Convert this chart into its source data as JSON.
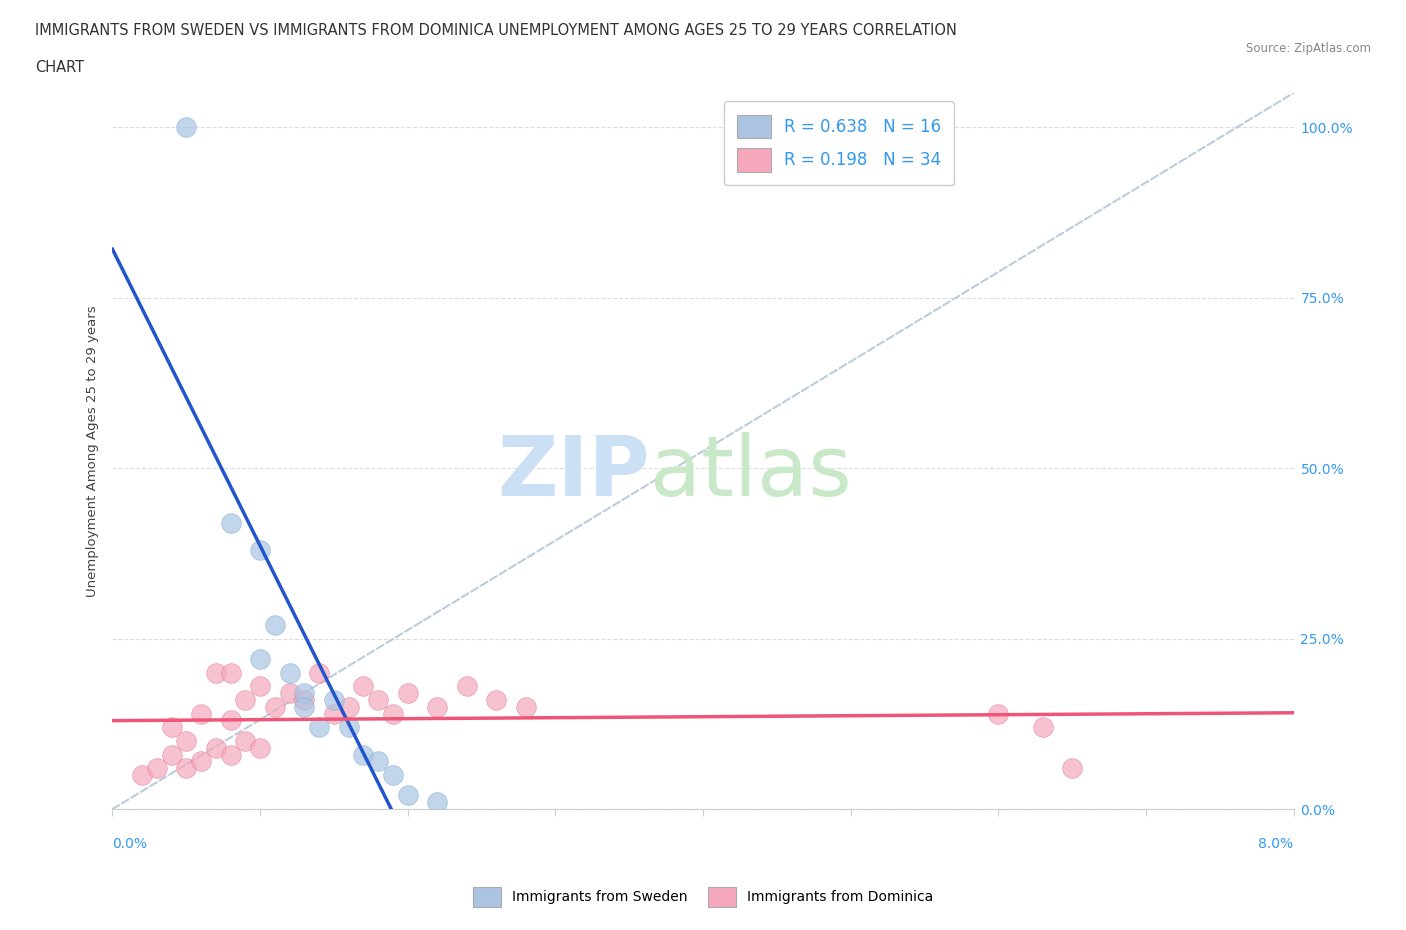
{
  "title_line1": "IMMIGRANTS FROM SWEDEN VS IMMIGRANTS FROM DOMINICA UNEMPLOYMENT AMONG AGES 25 TO 29 YEARS CORRELATION",
  "title_line2": "CHART",
  "source": "Source: ZipAtlas.com",
  "ylabel": "Unemployment Among Ages 25 to 29 years",
  "yticks": [
    0.0,
    0.25,
    0.5,
    0.75,
    1.0
  ],
  "ytick_labels": [
    "0.0%",
    "25.0%",
    "50.0%",
    "75.0%",
    "100.0%"
  ],
  "xlim": [
    0.0,
    0.08
  ],
  "ylim": [
    0.0,
    1.05
  ],
  "r_sweden": 0.638,
  "n_sweden": 16,
  "r_dominica": 0.198,
  "n_dominica": 34,
  "sweden_color": "#aac4e2",
  "dominica_color": "#f5a8bb",
  "sweden_edge_color": "#7aadd4",
  "dominica_edge_color": "#e87898",
  "sweden_scatter_x": [
    0.005,
    0.008,
    0.01,
    0.01,
    0.011,
    0.012,
    0.013,
    0.013,
    0.014,
    0.015,
    0.016,
    0.017,
    0.018,
    0.019,
    0.02,
    0.022
  ],
  "sweden_scatter_y": [
    1.0,
    0.42,
    0.38,
    0.22,
    0.27,
    0.2,
    0.17,
    0.15,
    0.12,
    0.16,
    0.12,
    0.08,
    0.07,
    0.05,
    0.02,
    0.01
  ],
  "dominica_scatter_x": [
    0.002,
    0.003,
    0.004,
    0.004,
    0.005,
    0.005,
    0.006,
    0.006,
    0.007,
    0.007,
    0.008,
    0.008,
    0.008,
    0.009,
    0.009,
    0.01,
    0.01,
    0.011,
    0.012,
    0.013,
    0.014,
    0.015,
    0.016,
    0.017,
    0.018,
    0.019,
    0.02,
    0.022,
    0.024,
    0.026,
    0.028,
    0.06,
    0.063,
    0.065
  ],
  "dominica_scatter_y": [
    0.05,
    0.06,
    0.08,
    0.12,
    0.06,
    0.1,
    0.07,
    0.14,
    0.09,
    0.2,
    0.08,
    0.13,
    0.2,
    0.1,
    0.16,
    0.09,
    0.18,
    0.15,
    0.17,
    0.16,
    0.2,
    0.14,
    0.15,
    0.18,
    0.16,
    0.14,
    0.17,
    0.15,
    0.18,
    0.16,
    0.15,
    0.14,
    0.12,
    0.06
  ],
  "watermark_zip_color": "#cce0f5",
  "watermark_atlas_color": "#c8e8c8",
  "background_color": "#ffffff",
  "grid_color": "#dddddd",
  "trend_sweden_color": "#2255cc",
  "trend_dominica_color": "#ee5577",
  "ref_line_color": "#bbccdd",
  "legend_text_color": "#3399ee",
  "legend_r_color": "#3399ee"
}
